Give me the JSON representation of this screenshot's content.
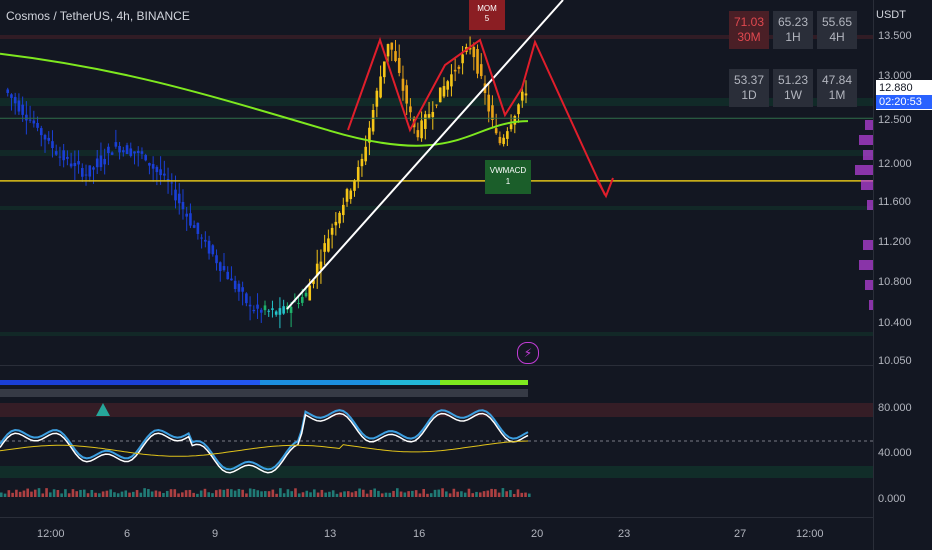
{
  "header": {
    "symbol": "Cosmos / TetherUS, 4h, BINANCE",
    "unit": "USDT"
  },
  "timeframe_table": [
    {
      "value": "71.03",
      "tf": "30M",
      "hot": true
    },
    {
      "value": "65.23",
      "tf": "1H",
      "hot": false
    },
    {
      "value": "55.65",
      "tf": "4H",
      "hot": false
    },
    {
      "value": "53.37",
      "tf": "1D",
      "hot": false
    },
    {
      "value": "51.23",
      "tf": "1W",
      "hot": false
    },
    {
      "value": "47.84",
      "tf": "1M",
      "hot": false
    }
  ],
  "price_axis": [
    "13.500",
    "13.000",
    "12.500",
    "12.000",
    "11.600",
    "11.200",
    "10.800",
    "10.400",
    "10.050"
  ],
  "current_price": {
    "value": "12.880",
    "countdown": "02:20:53"
  },
  "osc_axis": [
    "80.000",
    "40.000",
    "0.000"
  ],
  "time_axis": [
    "12:00",
    "6",
    "9",
    "13",
    "16",
    "20",
    "23",
    "27",
    "12:00"
  ],
  "badges": {
    "mom_line1": "MOM",
    "mom_line2": "5",
    "vwmacd_line1": "VWMACD",
    "vwmacd_line2": "1"
  },
  "colors": {
    "background": "#131722",
    "bull": "#f5c518",
    "bear": "#1a3fd6",
    "ma": "#7ee81f",
    "trendline": "#ffffff",
    "arrow": "#e01e2b",
    "level": "#e0c21a"
  },
  "icons": {
    "alert": "lightning-icon"
  },
  "chart_data": {
    "type": "line",
    "title": "Cosmos / TetherUS, 4h, BINANCE",
    "ylim": [
      10.05,
      13.6
    ],
    "x_ticks": [
      "12:00",
      "6",
      "9",
      "13",
      "16",
      "20",
      "23",
      "27",
      "12:00"
    ],
    "series": [
      {
        "values": [
          12.88,
          12.55,
          12.2,
          12.0,
          12.3,
          12.2,
          11.9,
          11.4,
          11.0,
          10.6,
          10.55,
          10.75,
          11.5,
          12.1,
          13.4,
          12.4,
          12.9,
          13.35,
          12.3,
          12.88
        ]
      }
    ],
    "levels": [
      11.93,
      12.58
    ],
    "oscillator": {
      "ylim": [
        0,
        100
      ],
      "levels": [
        40,
        80
      ]
    }
  }
}
